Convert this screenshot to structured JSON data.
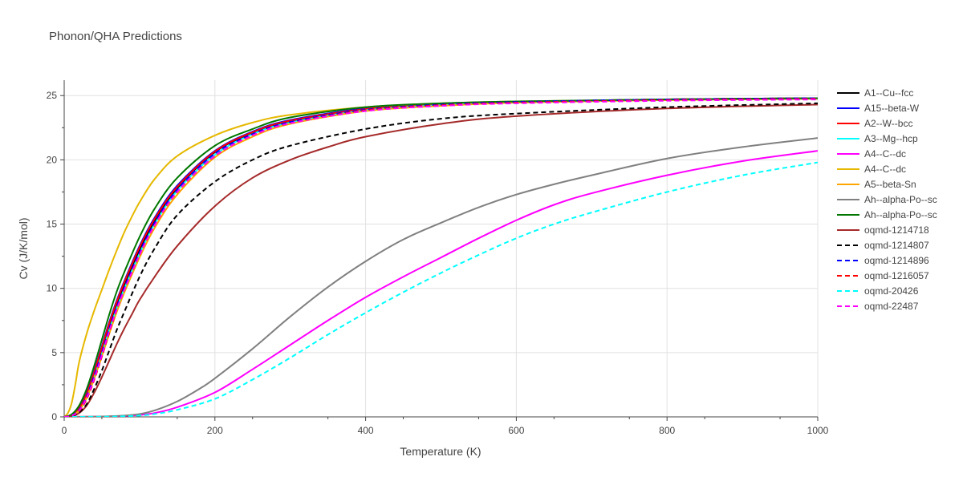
{
  "chart_data": {
    "type": "line",
    "title": "Phonon/QHA Predictions",
    "xlabel": "Temperature (K)",
    "ylabel": "Cv (J/K/mol)",
    "xlim": [
      0,
      1000
    ],
    "ylim": [
      0,
      26.2
    ],
    "xticks": [
      0,
      200,
      400,
      600,
      800,
      1000
    ],
    "yticks": [
      0,
      5,
      10,
      15,
      20,
      25
    ],
    "grid": true,
    "legend_position": "right",
    "series": [
      {
        "name": "A1--Cu--fcc",
        "color": "#000000",
        "dash": "solid",
        "x": [
          0,
          10,
          20,
          30,
          40,
          50,
          60,
          70,
          80,
          100,
          120,
          150,
          200,
          250,
          300,
          400,
          500,
          600,
          800,
          1000
        ],
        "y": [
          0,
          0.12,
          0.6,
          1.7,
          3.4,
          5.2,
          7.1,
          8.8,
          10.3,
          13.0,
          15.2,
          17.8,
          20.6,
          22.1,
          23.0,
          23.9,
          24.3,
          24.5,
          24.7,
          24.8
        ]
      },
      {
        "name": "A15--beta-W",
        "color": "#0000ff",
        "dash": "solid",
        "x": [
          0,
          10,
          20,
          30,
          40,
          50,
          60,
          70,
          80,
          100,
          120,
          150,
          200,
          250,
          300,
          400,
          500,
          600,
          800,
          1000
        ],
        "y": [
          0,
          0.15,
          0.7,
          1.9,
          3.6,
          5.5,
          7.4,
          9.1,
          10.6,
          13.3,
          15.5,
          18.0,
          20.7,
          22.2,
          23.1,
          24.0,
          24.35,
          24.5,
          24.7,
          24.8
        ]
      },
      {
        "name": "A2--W--bcc",
        "color": "#ff0000",
        "dash": "solid",
        "x": [
          0,
          10,
          20,
          30,
          40,
          50,
          60,
          70,
          80,
          100,
          120,
          150,
          200,
          250,
          300,
          400,
          500,
          600,
          800,
          1000
        ],
        "y": [
          0,
          0.14,
          0.65,
          1.8,
          3.5,
          5.4,
          7.3,
          9.0,
          10.5,
          13.2,
          15.4,
          17.9,
          20.65,
          22.15,
          23.05,
          23.95,
          24.3,
          24.5,
          24.7,
          24.8
        ]
      },
      {
        "name": "A3--Mg--hcp",
        "color": "#00ffff",
        "dash": "solid",
        "x": [
          0,
          10,
          20,
          30,
          40,
          50,
          60,
          70,
          80,
          100,
          120,
          150,
          200,
          250,
          300,
          400,
          500,
          600,
          800,
          1000
        ],
        "y": [
          0,
          0.1,
          0.5,
          1.5,
          3.1,
          4.9,
          6.8,
          8.5,
          10.0,
          12.7,
          15.0,
          17.6,
          20.4,
          22.0,
          22.9,
          23.85,
          24.25,
          24.45,
          24.65,
          24.75
        ]
      },
      {
        "name": "A4--C--dc",
        "color": "#ff00ff",
        "dash": "solid",
        "x": [
          0,
          50,
          80,
          100,
          120,
          150,
          200,
          250,
          300,
          350,
          400,
          450,
          500,
          550,
          600,
          650,
          700,
          800,
          900,
          1000
        ],
        "y": [
          0,
          0.02,
          0.08,
          0.15,
          0.3,
          0.75,
          1.9,
          3.7,
          5.6,
          7.5,
          9.3,
          10.9,
          12.4,
          13.9,
          15.3,
          16.5,
          17.4,
          18.8,
          19.9,
          20.7
        ]
      },
      {
        "name": "A4--C--dc",
        "color": "#e6b800",
        "dash": "solid",
        "x": [
          0,
          5,
          10,
          15,
          20,
          30,
          40,
          50,
          60,
          70,
          80,
          90,
          100,
          120,
          150,
          200,
          250,
          300,
          400,
          500,
          600,
          800,
          1000
        ],
        "y": [
          0,
          0.3,
          1.1,
          2.6,
          4.3,
          6.5,
          8.3,
          9.9,
          11.5,
          13.0,
          14.4,
          15.6,
          16.7,
          18.5,
          20.3,
          21.9,
          22.9,
          23.5,
          24.1,
          24.4,
          24.55,
          24.7,
          24.8
        ]
      },
      {
        "name": "A5--beta-Sn",
        "color": "#ffa500",
        "dash": "solid",
        "x": [
          0,
          10,
          20,
          30,
          40,
          50,
          60,
          70,
          80,
          100,
          120,
          150,
          200,
          250,
          300,
          400,
          500,
          600,
          800,
          1000
        ],
        "y": [
          0,
          0.1,
          0.5,
          1.5,
          3.0,
          4.7,
          6.5,
          8.2,
          9.7,
          12.4,
          14.7,
          17.3,
          20.2,
          21.8,
          22.8,
          23.8,
          24.2,
          24.45,
          24.65,
          24.75
        ]
      },
      {
        "name": "Ah--alpha-Po--sc",
        "color": "#808080",
        "dash": "solid",
        "x": [
          0,
          50,
          80,
          100,
          120,
          150,
          180,
          200,
          250,
          300,
          350,
          400,
          450,
          500,
          550,
          600,
          650,
          700,
          800,
          900,
          1000
        ],
        "y": [
          0,
          0.03,
          0.1,
          0.22,
          0.5,
          1.2,
          2.2,
          3.0,
          5.3,
          7.8,
          10.1,
          12.1,
          13.8,
          15.1,
          16.3,
          17.3,
          18.1,
          18.8,
          20.1,
          21.0,
          21.7
        ]
      },
      {
        "name": "Ah--alpha-Po--sc",
        "color": "#007700",
        "dash": "solid",
        "x": [
          0,
          10,
          20,
          30,
          40,
          50,
          60,
          70,
          80,
          100,
          120,
          150,
          200,
          250,
          300,
          400,
          500,
          600,
          800,
          1000
        ],
        "y": [
          0,
          0.2,
          0.9,
          2.2,
          4.0,
          6.0,
          8.0,
          9.8,
          11.3,
          14.0,
          16.2,
          18.6,
          21.1,
          22.4,
          23.3,
          24.1,
          24.4,
          24.55,
          24.7,
          24.8
        ]
      },
      {
        "name": "oqmd-1214718",
        "color": "#a52a2a",
        "dash": "solid",
        "x": [
          0,
          10,
          20,
          30,
          40,
          50,
          60,
          70,
          80,
          90,
          100,
          120,
          150,
          200,
          250,
          300,
          350,
          400,
          500,
          600,
          800,
          1000
        ],
        "y": [
          0,
          0.05,
          0.3,
          0.9,
          1.9,
          3.1,
          4.4,
          5.7,
          6.9,
          8.0,
          9.1,
          10.9,
          13.3,
          16.4,
          18.6,
          20.0,
          21.0,
          21.8,
          22.8,
          23.4,
          24.0,
          24.3
        ]
      },
      {
        "name": "oqmd-1214807",
        "color": "#000000",
        "dash": "dash",
        "x": [
          0,
          10,
          20,
          30,
          40,
          50,
          60,
          70,
          80,
          100,
          120,
          150,
          200,
          250,
          300,
          400,
          500,
          600,
          800,
          1000
        ],
        "y": [
          0,
          0.06,
          0.35,
          1.0,
          2.2,
          3.6,
          5.2,
          6.8,
          8.2,
          10.9,
          13.1,
          15.7,
          18.3,
          20.0,
          21.1,
          22.4,
          23.2,
          23.6,
          24.1,
          24.4
        ]
      },
      {
        "name": "oqmd-1214896",
        "color": "#0000ff",
        "dash": "dash",
        "x": [
          0,
          10,
          20,
          30,
          40,
          50,
          60,
          70,
          80,
          100,
          120,
          150,
          200,
          250,
          300,
          400,
          500,
          600,
          800,
          1000
        ],
        "y": [
          0,
          0.1,
          0.55,
          1.6,
          3.2,
          5.0,
          6.9,
          8.6,
          10.1,
          12.8,
          15.1,
          17.7,
          20.5,
          22.0,
          22.95,
          23.9,
          24.3,
          24.5,
          24.7,
          24.8
        ]
      },
      {
        "name": "oqmd-1216057",
        "color": "#ff0000",
        "dash": "dash",
        "x": [
          0,
          10,
          20,
          30,
          40,
          50,
          60,
          70,
          80,
          100,
          120,
          150,
          200,
          250,
          300,
          400,
          500,
          600,
          800,
          1000
        ],
        "y": [
          0,
          0.08,
          0.45,
          1.4,
          2.9,
          4.7,
          6.6,
          8.4,
          9.9,
          12.6,
          14.9,
          17.5,
          20.3,
          21.9,
          22.85,
          23.85,
          24.25,
          24.45,
          24.65,
          24.75
        ]
      },
      {
        "name": "oqmd-20426",
        "color": "#00ffff",
        "dash": "dash",
        "x": [
          0,
          50,
          80,
          100,
          120,
          150,
          200,
          250,
          300,
          350,
          400,
          450,
          500,
          550,
          600,
          650,
          700,
          800,
          900,
          1000
        ],
        "y": [
          0,
          0.01,
          0.05,
          0.1,
          0.22,
          0.55,
          1.4,
          2.9,
          4.6,
          6.4,
          8.1,
          9.7,
          11.2,
          12.6,
          13.9,
          15.0,
          15.9,
          17.5,
          18.8,
          19.8
        ]
      },
      {
        "name": "oqmd-22487",
        "color": "#ff00ff",
        "dash": "dash",
        "x": [
          0,
          10,
          20,
          30,
          40,
          50,
          60,
          70,
          80,
          100,
          120,
          150,
          200,
          250,
          300,
          400,
          500,
          600,
          800,
          1000
        ],
        "y": [
          0,
          0.09,
          0.5,
          1.5,
          3.0,
          4.8,
          6.7,
          8.4,
          9.9,
          12.6,
          14.9,
          17.5,
          20.3,
          21.9,
          22.85,
          23.8,
          24.2,
          24.4,
          24.6,
          24.7
        ]
      }
    ]
  }
}
